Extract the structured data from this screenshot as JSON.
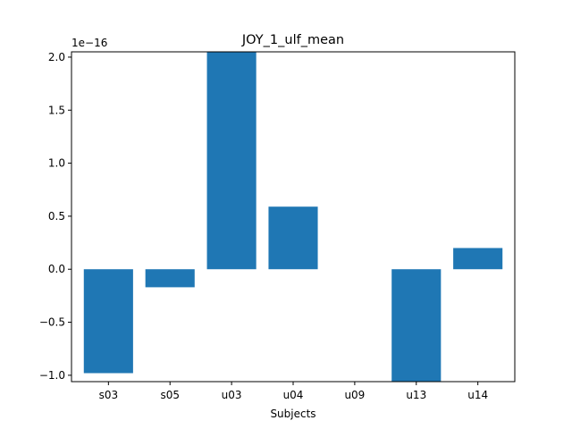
{
  "chart_data": {
    "type": "bar",
    "title": "JOY_1_ulf_mean",
    "xlabel": "Subjects",
    "ylabel": "",
    "scale_label": "1e−16",
    "categories": [
      "s03",
      "s05",
      "u03",
      "u04",
      "u09",
      "u13",
      "u14"
    ],
    "values": [
      -0.98,
      -0.17,
      2.05,
      0.59,
      0.0,
      -1.06,
      0.2
    ],
    "ylim": [
      -1.06,
      2.05
    ],
    "yticks": [
      -1.0,
      -0.5,
      0.0,
      0.5,
      1.0,
      1.5,
      2.0
    ],
    "ytick_labels": [
      "−1.0",
      "−0.5",
      "0.0",
      "0.5",
      "1.0",
      "1.5",
      "2.0"
    ],
    "bar_color": "#1f77b4",
    "grid": false,
    "legend": false
  }
}
